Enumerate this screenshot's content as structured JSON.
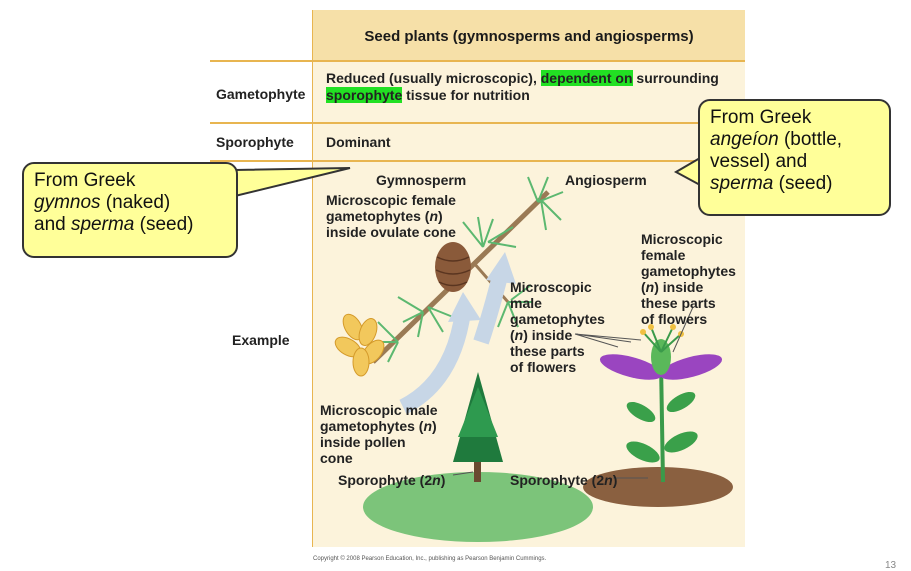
{
  "table": {
    "header": "Seed plants (gymnosperms and angiosperms)",
    "rows": {
      "gametophyte_label": "Gametophyte",
      "gametophyte_text_1": "Reduced (usually microscopic), ",
      "gametophyte_hl_1": "dependent on",
      "gametophyte_text_2": " surrounding",
      "gametophyte_hl_2": "sporophyte",
      "gametophyte_text_3": " tissue for nutrition",
      "sporophyte_label": "Sporophyte",
      "sporophyte_text": "Dominant",
      "example_label": "Example"
    }
  },
  "example": {
    "gymnosperm_title": "Gymnosperm",
    "angiosperm_title": "Angiosperm",
    "female_gym_1": "Microscopic female",
    "female_gym_2": "gametophytes (",
    "female_gym_n": "n",
    "female_gym_3": ")",
    "female_gym_4": "inside ovulate cone",
    "male_ang_1": "Microscopic",
    "male_ang_2": "male",
    "male_ang_3": "gametophytes",
    "male_ang_4a": "(",
    "male_ang_n": "n",
    "male_ang_4b": ") inside",
    "male_ang_5": "these parts",
    "male_ang_6": "of flowers",
    "female_ang_1": "Microscopic",
    "female_ang_2": "female",
    "female_ang_3": "gametophytes",
    "female_ang_4a": "(",
    "female_ang_n": "n",
    "female_ang_4b": ") inside",
    "female_ang_5": "these parts",
    "female_ang_6": "of flowers",
    "male_gym_1": "Microscopic male",
    "male_gym_2a": "gametophytes (",
    "male_gym_n": "n",
    "male_gym_2b": ")",
    "male_gym_3": "inside pollen",
    "male_gym_4": "cone",
    "sporo_gym_a": "Sporophyte (2",
    "sporo_gym_n": "n",
    "sporo_gym_b": ")",
    "sporo_ang_a": "Sporophyte (2",
    "sporo_ang_n": "n",
    "sporo_ang_b": ")"
  },
  "callouts": {
    "left_1": "From Greek",
    "left_2a": "gymnos",
    "left_2b": " (naked)",
    "left_3a": "and ",
    "left_3b": "sperma",
    "left_3c": " (seed)",
    "right_1": "From Greek",
    "right_2a": "angeíon",
    "right_2b": " (bottle,",
    "right_3": "vessel) and",
    "right_4a": "sperma",
    "right_4b": " (seed)"
  },
  "copyright": "Copyright © 2008 Pearson Education, Inc., publishing as Pearson Benjamin Cummings.",
  "page_number": "13",
  "colors": {
    "header_bg": "#f6e0a8",
    "cell_bg": "#fcf3db",
    "rule": "#e8b550",
    "highlight": "#22e023",
    "callout_bg": "#ffff99"
  }
}
